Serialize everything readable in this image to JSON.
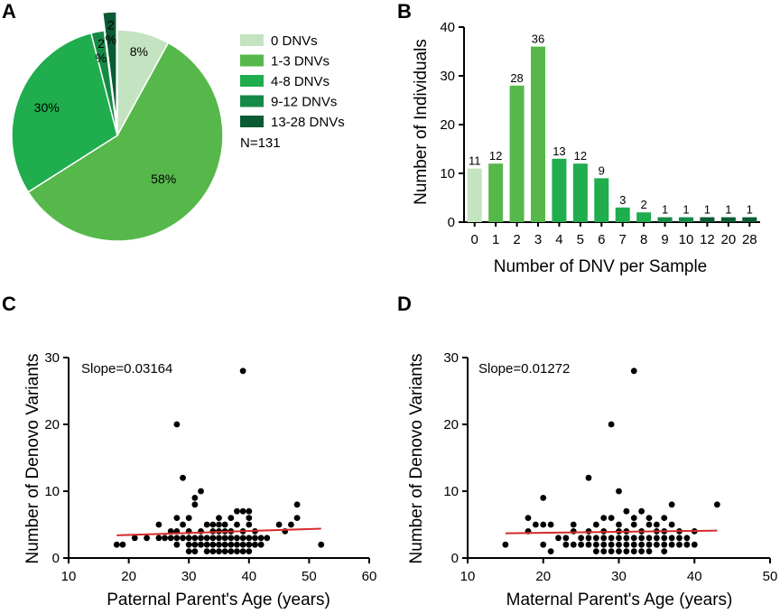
{
  "colors": {
    "c0": "#c4e3c1",
    "c1": "#56b84a",
    "c2": "#1fad4d",
    "c3": "#158a47",
    "c4": "#0a5a33",
    "reg": "#d62a2a"
  },
  "panels": {
    "a": "A",
    "b": "B",
    "c": "C",
    "d": "D"
  },
  "chart_data": [
    {
      "type": "pie",
      "panel": "A",
      "labels": [
        "0 DNVs",
        "1-3 DNVs",
        "4-8 DNVs",
        "9-12 DNVs",
        "13-28 DNVs"
      ],
      "values": [
        8,
        58,
        30,
        2,
        2
      ],
      "slice_labels": [
        "8%",
        "58%",
        "30%",
        "2%",
        "2%"
      ],
      "slice_labels_lines": [
        [
          "8%"
        ],
        [
          "58%"
        ],
        [
          "30%"
        ],
        [
          "2",
          "%"
        ],
        [
          "2",
          "%"
        ]
      ],
      "exploded_index": 4,
      "legend_note": "N=131",
      "colors": [
        "#c4e3c1",
        "#56b84a",
        "#1fad4d",
        "#158a47",
        "#0a5a33"
      ]
    },
    {
      "type": "bar",
      "panel": "B",
      "categories": [
        "0",
        "1",
        "2",
        "3",
        "4",
        "5",
        "6",
        "7",
        "8",
        "9",
        "10",
        "12",
        "20",
        "28"
      ],
      "values": [
        11,
        12,
        28,
        36,
        13,
        12,
        9,
        3,
        2,
        1,
        1,
        1,
        1,
        1
      ],
      "color_group": [
        0,
        1,
        1,
        1,
        2,
        2,
        2,
        2,
        2,
        3,
        3,
        4,
        4,
        4
      ],
      "xlabel": "Number of DNV per Sample",
      "ylabel": "Number of Individuals",
      "ylim": [
        0,
        40
      ],
      "yticks": [
        0,
        10,
        20,
        30,
        40
      ]
    },
    {
      "type": "scatter",
      "panel": "C",
      "xlabel": "Paternal Parent's Age (years)",
      "ylabel": "Number of Denovo Variants",
      "xlim": [
        10,
        60
      ],
      "ylim": [
        0,
        30
      ],
      "xticks": [
        10,
        20,
        30,
        40,
        50,
        60
      ],
      "yticks": [
        0,
        10,
        20,
        30
      ],
      "annotation": "Slope=0.03164",
      "regression": {
        "x": [
          18,
          52
        ],
        "y": [
          3.4,
          4.4
        ]
      },
      "points": [
        [
          18,
          2
        ],
        [
          19,
          2
        ],
        [
          21,
          3
        ],
        [
          23,
          3
        ],
        [
          25,
          3
        ],
        [
          25,
          5
        ],
        [
          26,
          3
        ],
        [
          27,
          3
        ],
        [
          27,
          4
        ],
        [
          28,
          3
        ],
        [
          28,
          2
        ],
        [
          28,
          4
        ],
        [
          28,
          6
        ],
        [
          28,
          20
        ],
        [
          29,
          3
        ],
        [
          29,
          12
        ],
        [
          29,
          5
        ],
        [
          30,
          1
        ],
        [
          30,
          2
        ],
        [
          30,
          3
        ],
        [
          30,
          4
        ],
        [
          30,
          6
        ],
        [
          31,
          1
        ],
        [
          31,
          2
        ],
        [
          31,
          3
        ],
        [
          31,
          8
        ],
        [
          31,
          9
        ],
        [
          32,
          2
        ],
        [
          32,
          3
        ],
        [
          32,
          4
        ],
        [
          32,
          10
        ],
        [
          33,
          1
        ],
        [
          33,
          2
        ],
        [
          33,
          3
        ],
        [
          33,
          5
        ],
        [
          34,
          1
        ],
        [
          34,
          2
        ],
        [
          34,
          3
        ],
        [
          34,
          4
        ],
        [
          34,
          5
        ],
        [
          35,
          1
        ],
        [
          35,
          2
        ],
        [
          35,
          3
        ],
        [
          35,
          4
        ],
        [
          35,
          5
        ],
        [
          35,
          6
        ],
        [
          36,
          1
        ],
        [
          36,
          2
        ],
        [
          36,
          3
        ],
        [
          36,
          4
        ],
        [
          36,
          5
        ],
        [
          37,
          1
        ],
        [
          37,
          2
        ],
        [
          37,
          3
        ],
        [
          37,
          4
        ],
        [
          37,
          6
        ],
        [
          38,
          1
        ],
        [
          38,
          2
        ],
        [
          38,
          3
        ],
        [
          38,
          5
        ],
        [
          38,
          7
        ],
        [
          39,
          1
        ],
        [
          39,
          2
        ],
        [
          39,
          3
        ],
        [
          39,
          4
        ],
        [
          39,
          7
        ],
        [
          39,
          28
        ],
        [
          40,
          1
        ],
        [
          40,
          2
        ],
        [
          40,
          3
        ],
        [
          40,
          5
        ],
        [
          40,
          6
        ],
        [
          40,
          7
        ],
        [
          41,
          2
        ],
        [
          41,
          3
        ],
        [
          41,
          4
        ],
        [
          42,
          2
        ],
        [
          42,
          3
        ],
        [
          43,
          3
        ],
        [
          45,
          5
        ],
        [
          46,
          4
        ],
        [
          47,
          5
        ],
        [
          48,
          6
        ],
        [
          48,
          8
        ],
        [
          52,
          2
        ]
      ]
    },
    {
      "type": "scatter",
      "panel": "D",
      "xlabel": "Maternal Parent's Age (years)",
      "ylabel": "Number of Denovo Variants",
      "xlim": [
        10,
        50
      ],
      "ylim": [
        0,
        30
      ],
      "xticks": [
        10,
        20,
        30,
        40,
        50
      ],
      "yticks": [
        0,
        10,
        20,
        30
      ],
      "annotation": "Slope=0.01272",
      "regression": {
        "x": [
          15,
          43
        ],
        "y": [
          3.7,
          4.1
        ]
      },
      "points": [
        [
          15,
          2
        ],
        [
          18,
          4
        ],
        [
          18,
          6
        ],
        [
          19,
          5
        ],
        [
          20,
          2
        ],
        [
          20,
          9
        ],
        [
          20,
          5
        ],
        [
          21,
          5
        ],
        [
          21,
          1
        ],
        [
          22,
          3
        ],
        [
          23,
          2
        ],
        [
          23,
          3
        ],
        [
          24,
          2
        ],
        [
          24,
          4
        ],
        [
          24,
          5
        ],
        [
          25,
          2
        ],
        [
          25,
          3
        ],
        [
          26,
          2
        ],
        [
          26,
          3
        ],
        [
          26,
          4
        ],
        [
          26,
          12
        ],
        [
          27,
          1
        ],
        [
          27,
          2
        ],
        [
          27,
          3
        ],
        [
          27,
          5
        ],
        [
          28,
          1
        ],
        [
          28,
          2
        ],
        [
          28,
          3
        ],
        [
          28,
          4
        ],
        [
          28,
          6
        ],
        [
          29,
          1
        ],
        [
          29,
          2
        ],
        [
          29,
          3
        ],
        [
          29,
          20
        ],
        [
          29,
          6
        ],
        [
          30,
          1
        ],
        [
          30,
          2
        ],
        [
          30,
          3
        ],
        [
          30,
          4
        ],
        [
          30,
          5
        ],
        [
          30,
          10
        ],
        [
          31,
          1
        ],
        [
          31,
          2
        ],
        [
          31,
          3
        ],
        [
          31,
          4
        ],
        [
          31,
          7
        ],
        [
          32,
          1
        ],
        [
          32,
          2
        ],
        [
          32,
          3
        ],
        [
          32,
          5
        ],
        [
          32,
          6
        ],
        [
          32,
          28
        ],
        [
          33,
          1
        ],
        [
          33,
          2
        ],
        [
          33,
          3
        ],
        [
          33,
          4
        ],
        [
          33,
          7
        ],
        [
          34,
          1
        ],
        [
          34,
          2
        ],
        [
          34,
          3
        ],
        [
          34,
          5
        ],
        [
          34,
          6
        ],
        [
          35,
          2
        ],
        [
          35,
          3
        ],
        [
          35,
          4
        ],
        [
          35,
          5
        ],
        [
          36,
          1
        ],
        [
          36,
          2
        ],
        [
          36,
          3
        ],
        [
          36,
          4
        ],
        [
          36,
          6
        ],
        [
          37,
          2
        ],
        [
          37,
          3
        ],
        [
          37,
          5
        ],
        [
          37,
          8
        ],
        [
          38,
          2
        ],
        [
          38,
          3
        ],
        [
          38,
          4
        ],
        [
          39,
          3
        ],
        [
          39,
          2
        ],
        [
          40,
          2
        ],
        [
          40,
          4
        ],
        [
          43,
          8
        ]
      ]
    }
  ]
}
